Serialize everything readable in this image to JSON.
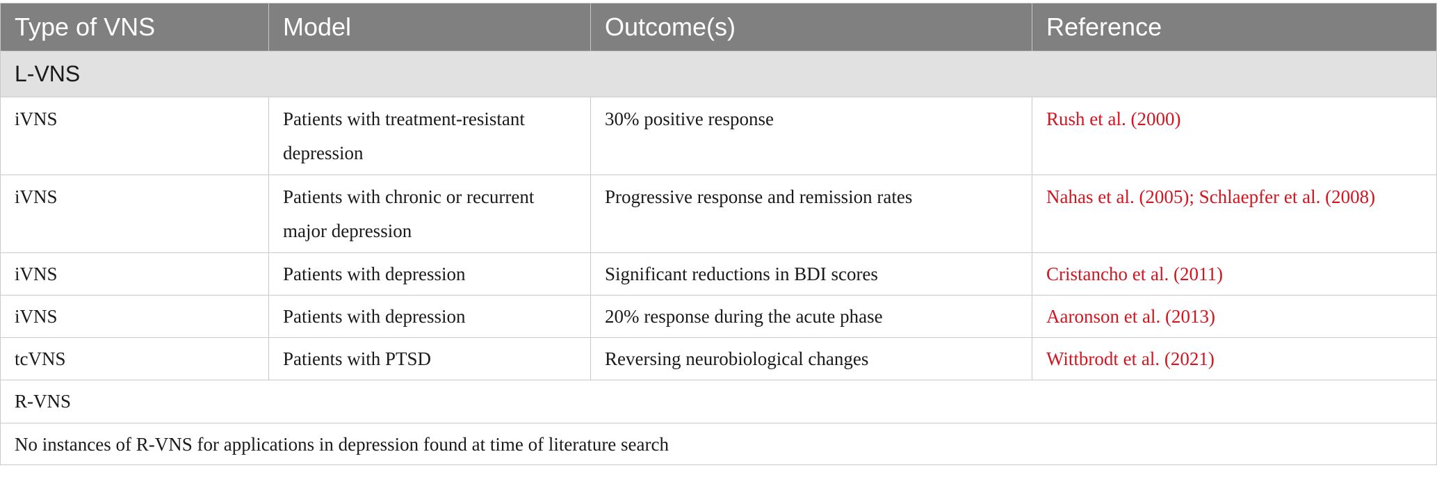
{
  "table": {
    "headers": [
      "Type of VNS",
      "Model",
      "Outcome(s)",
      "Reference"
    ],
    "section_lvns": "L-VNS",
    "rows": [
      {
        "type": "iVNS",
        "model": "Patients with treatment-resistant depression",
        "outcome": "30% positive response",
        "reference": "Rush et al. (2000)"
      },
      {
        "type": "iVNS",
        "model": "Patients with chronic or recurrent major depression",
        "outcome": "Progressive response and remission rates",
        "reference": "Nahas et al. (2005); Schlaepfer et al. (2008)"
      },
      {
        "type": "iVNS",
        "model": "Patients with depression",
        "outcome": "Significant reductions in BDI scores",
        "reference": "Cristancho et al. (2011)"
      },
      {
        "type": "iVNS",
        "model": "Patients with depression",
        "outcome": "20% response during the acute phase",
        "reference": "Aaronson et al. (2013)"
      },
      {
        "type": "tcVNS",
        "model": "Patients with PTSD",
        "outcome": "Reversing neurobiological changes",
        "reference": "Wittbrodt et al. (2021)"
      }
    ],
    "section_rvns": "R-VNS",
    "note": "No instances of R-VNS for applications in depression found at time of literature search"
  },
  "colors": {
    "header_bg": "#7f807f",
    "section_bg": "#e1e1e2",
    "reference_link": "#d4141f",
    "border": "#c9c9c9"
  }
}
